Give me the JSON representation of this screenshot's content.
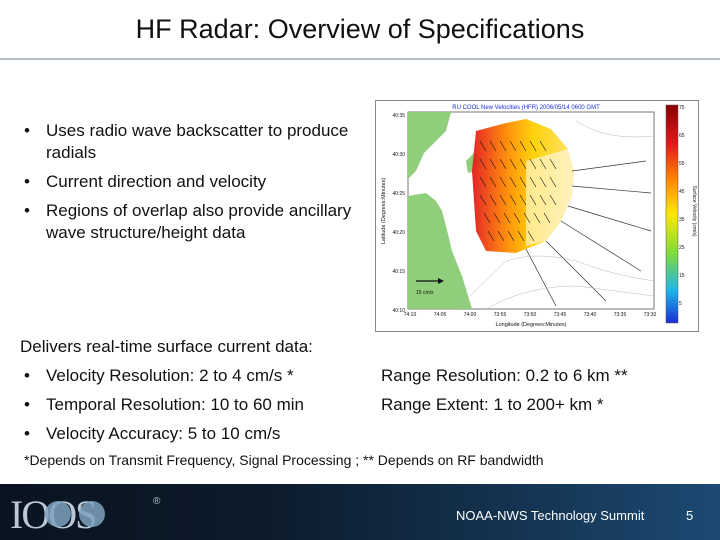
{
  "slide": {
    "title": "HF Radar: Overview of Specifications",
    "bullets": [
      "Uses radio wave backscatter to produce radials",
      "Current direction and velocity",
      "Regions of overlap also provide ancillary wave structure/height data"
    ],
    "deliver_heading": "Delivers real-time surface current data:",
    "specs_left": [
      "Velocity Resolution: 2 to 4 cm/s *",
      "Temporal Resolution: 10 to 60 min",
      "Velocity Accuracy: 5 to 10 cm/s"
    ],
    "specs_right": [
      "Range Resolution: 0.2 to 6 km **",
      "Range Extent: 1 to 200+ km *"
    ],
    "footnote": "*Depends on Transmit Frequency, Signal Processing ; ** Depends on RF bandwidth",
    "footer_text": "NOAA-NWS Technology Summit",
    "page_number": "5"
  },
  "figure": {
    "title": "RU COOL New Velocities (HFR) 2006/05/14 0600 GMT",
    "ylabel": "Latitude (Degrees:Minutes)",
    "xlabel": "Longitude (Degrees:Minutes)",
    "colorbar_label": "Surface Velocity (cm/s)",
    "lat_ticks": [
      "40:35",
      "40:30",
      "40:25",
      "40:20",
      "40:15",
      "40:10"
    ],
    "lon_ticks": [
      "74:10",
      "74:05",
      "74:00",
      "73:55",
      "73:50",
      "73:45",
      "73:40",
      "73:35",
      "73:30"
    ],
    "colorbar_ticks": [
      "75",
      "65",
      "55",
      "45",
      "35",
      "25",
      "15",
      "5"
    ],
    "scale_label": "15 cm/s",
    "colors": {
      "land": "#8fce7a",
      "water": "#ffffff",
      "vector": "#111111"
    }
  },
  "logo": {
    "text": "IOOS",
    "mark": "®"
  }
}
